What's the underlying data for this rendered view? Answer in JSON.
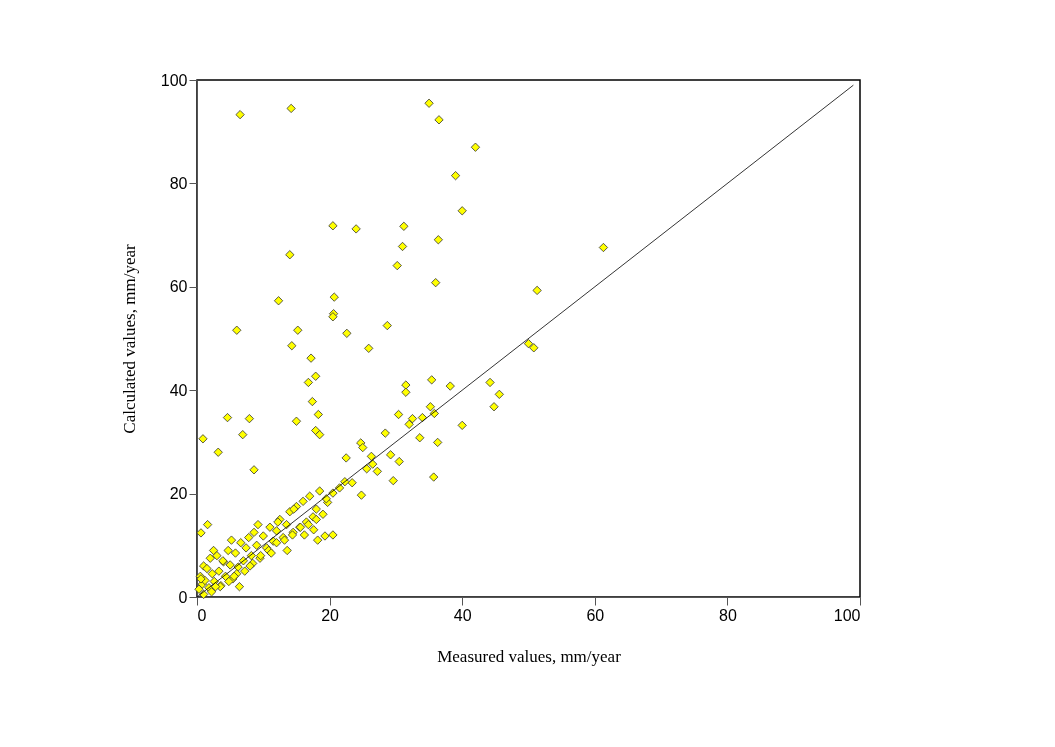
{
  "chart_data": {
    "type": "scatter",
    "xlabel": "Measured values, mm/year",
    "ylabel": "Calculated values, mm/year",
    "xlim": [
      0,
      100
    ],
    "ylim": [
      0,
      100
    ],
    "xticks": [
      0,
      20,
      40,
      60,
      80,
      100
    ],
    "yticks": [
      0,
      20,
      40,
      60,
      80,
      100
    ],
    "grid": false,
    "marker": "diamond",
    "series": [
      {
        "color": "#ffff00",
        "x": [
          6.5,
          14.2,
          35,
          36.5,
          42,
          39,
          40,
          20.5,
          24,
          31.2,
          31,
          36.4,
          14,
          61.3,
          30.2,
          36,
          51.3,
          12.3,
          20.7,
          20.6,
          20.5,
          6,
          15.2,
          22.6,
          28.7,
          14.3,
          25.9,
          17.2,
          50,
          50.8,
          4.6,
          7.9,
          6.9,
          3.2,
          0.9,
          1.6,
          0.6,
          8.6,
          17.9,
          16.8,
          17.4,
          18.3,
          15,
          17.9,
          18.5,
          31.5,
          31.5,
          35.4,
          38.2,
          44.2,
          45.6,
          44.8,
          40,
          35.2,
          35.8,
          34,
          32.5,
          30.4,
          32,
          36.3,
          35.7,
          33.6,
          29.2,
          30.5,
          29.6,
          28.4,
          24.7,
          25,
          26.5,
          27.2,
          25.6,
          24.8,
          22.5,
          23.4,
          21.5,
          20.5,
          19.7,
          20.5,
          19.3,
          18.2,
          22.3,
          26.3,
          0.3,
          0.5,
          0.8,
          1.0,
          1.2,
          1.5,
          1.8,
          2.0,
          2.3,
          2.6,
          3.0,
          3.3,
          3.6,
          4.0,
          4.3,
          4.7,
          5.0,
          5.4,
          5.8,
          6.2,
          6.6,
          7.0,
          7.4,
          7.8,
          8.2,
          8.6,
          9.0,
          9.5,
          10.0,
          10.5,
          11.0,
          11.5,
          12.0,
          12.5,
          13.0,
          13.5,
          14.0,
          14.5,
          15.0,
          15.5,
          16.0,
          16.5,
          17.0,
          17.5,
          18.0,
          18.5,
          19.0,
          19.5,
          1.0,
          2.2,
          3.5,
          4.8,
          6.0,
          7.2,
          8.4,
          9.6,
          10.8,
          12.0,
          13.2,
          14.4,
          15.6,
          16.8,
          18.0,
          0.6,
          2.8,
          5.6,
          6.4,
          8.0,
          11.2,
          13.6,
          16.2,
          17.6,
          12.2,
          14.6,
          9.2,
          3.9,
          2.5,
          5.2
        ],
        "values": [
          93.3,
          94.5,
          95.5,
          92.3,
          87,
          81.5,
          74.7,
          71.8,
          71.2,
          71.7,
          67.8,
          69.1,
          66.2,
          67.6,
          64.1,
          60.8,
          59.3,
          57.3,
          58,
          54.8,
          54.2,
          51.6,
          51.6,
          51,
          52.5,
          48.6,
          48.1,
          46.2,
          49,
          48.2,
          34.7,
          34.5,
          31.4,
          28,
          30.6,
          14,
          12.4,
          24.6,
          42.7,
          41.5,
          37.8,
          35.3,
          34,
          32.2,
          31.4,
          41,
          39.6,
          42,
          40.8,
          41.5,
          39.2,
          36.8,
          33.2,
          36.8,
          35.5,
          34.7,
          34.5,
          35.3,
          33.4,
          29.9,
          23.2,
          30.8,
          27.5,
          26.2,
          22.5,
          31.7,
          29.8,
          28.9,
          25.7,
          24.3,
          24.8,
          19.7,
          26.9,
          22.1,
          21.1,
          20.1,
          18.3,
          12,
          11.8,
          11,
          22.3,
          27.2,
          1.5,
          4.0,
          2.5,
          6.0,
          3.2,
          5.5,
          1.8,
          7.5,
          4.5,
          3.0,
          8.0,
          5.0,
          2.2,
          6.8,
          4.0,
          9.0,
          6.2,
          3.5,
          8.5,
          5.8,
          10.5,
          7.0,
          9.5,
          11.5,
          8.0,
          12.5,
          10.0,
          7.5,
          11.8,
          9.5,
          13.5,
          10.8,
          12.8,
          15.0,
          11.5,
          14.0,
          16.5,
          12.5,
          17.5,
          13.5,
          18.5,
          14.5,
          19.5,
          15.5,
          17.0,
          20.5,
          16.0,
          19.0,
          0.5,
          1.0,
          2.0,
          3.0,
          4.5,
          5.0,
          6.5,
          8.0,
          9.0,
          10.5,
          11.0,
          12.0,
          13.5,
          14.0,
          15.0,
          3.5,
          2.0,
          4.0,
          2.0,
          6.0,
          8.5,
          9.0,
          12.0,
          13.0,
          14.5,
          17.0,
          14.0,
          7.0,
          9.0,
          11.0
        ]
      },
      {
        "type": "line",
        "marker": "none",
        "color": "#000000",
        "x": [
          0,
          99
        ],
        "values": [
          0,
          99
        ]
      }
    ]
  }
}
